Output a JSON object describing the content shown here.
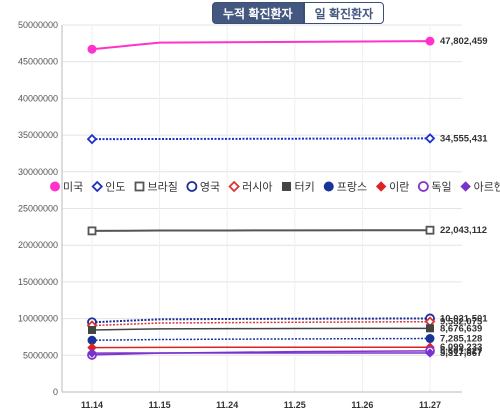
{
  "tabs": [
    {
      "label": "누적 확진환자",
      "active": true
    },
    {
      "label": "일 확진환자",
      "active": false
    }
  ],
  "chart_data": {
    "type": "line",
    "categories": [
      "11.14",
      "11.15",
      "11.24",
      "11.25",
      "11.26",
      "11.27"
    ],
    "ylim": [
      0,
      50000000
    ],
    "yticks": [
      0,
      5000000,
      10000000,
      15000000,
      20000000,
      25000000,
      30000000,
      35000000,
      40000000,
      45000000,
      50000000
    ],
    "ytick_labels": [
      "0",
      "5000000",
      "10000000",
      "15000000",
      "20000000",
      "25000000",
      "30000000",
      "35000000",
      "40000000",
      "45000000",
      "50000000"
    ],
    "grid": true,
    "legend_position": "middle",
    "series": [
      {
        "name": "미국",
        "color": "#ff33cc",
        "marker": "circle-filled",
        "dash": "solid",
        "width": 2,
        "values": [
          46700000,
          47600000,
          47650000,
          47700000,
          47750000,
          47802459
        ],
        "end_label": "47,802,459"
      },
      {
        "name": "인도",
        "color": "#1a2fcc",
        "marker": "diamond-open",
        "dash": "dotted",
        "width": 2,
        "values": [
          34450000,
          34470000,
          34490000,
          34510000,
          34530000,
          34555431
        ],
        "end_label": "34,555,431"
      },
      {
        "name": "브라질",
        "color": "#555555",
        "marker": "square-open",
        "dash": "solid",
        "width": 2,
        "values": [
          21950000,
          22000000,
          22010000,
          22020000,
          22030000,
          22043112
        ],
        "end_label": "22,043,112"
      },
      {
        "name": "영국",
        "color": "#1a2f99",
        "marker": "circle-open",
        "dash": "dotted",
        "width": 2,
        "values": [
          9500000,
          9900000,
          9950000,
          9980000,
          10000000,
          10021501
        ],
        "end_label": "10,021,501"
      },
      {
        "name": "러시아",
        "color": "#dd3333",
        "marker": "diamond-open",
        "dash": "dotted",
        "width": 1.5,
        "values": [
          9050000,
          9400000,
          9450000,
          9500000,
          9540000,
          9582075
        ],
        "end_label": "9,582,075"
      },
      {
        "name": "터키",
        "color": "#444444",
        "marker": "square-filled",
        "dash": "solid",
        "width": 1.5,
        "values": [
          8450000,
          8600000,
          8630000,
          8650000,
          8660000,
          8676639
        ],
        "end_label": "8,676,639"
      },
      {
        "name": "프랑스",
        "color": "#1a3399",
        "marker": "circle-filled",
        "dash": "dotted",
        "width": 1.5,
        "values": [
          7050000,
          7150000,
          7200000,
          7230000,
          7260000,
          7285128
        ],
        "end_label": "7,285,128"
      },
      {
        "name": "이란",
        "color": "#dd2222",
        "marker": "diamond-filled",
        "dash": "solid",
        "width": 1.5,
        "values": [
          6050000,
          6080000,
          6090000,
          6095000,
          6097000,
          6099233
        ],
        "end_label": "6,099,233"
      },
      {
        "name": "독일",
        "color": "#8833cc",
        "marker": "circle-open",
        "dash": "solid",
        "width": 1.5,
        "values": [
          5050000,
          5300000,
          5400000,
          5500000,
          5560000,
          5601827
        ],
        "end_label": "5,601,827"
      },
      {
        "name": "아르헨티나",
        "color": "#7733cc",
        "marker": "diamond-filled",
        "dash": "solid",
        "width": 1.5,
        "values": [
          5300000,
          5310000,
          5313000,
          5315000,
          5316000,
          5317867
        ],
        "end_label": "5,317,867"
      }
    ]
  }
}
